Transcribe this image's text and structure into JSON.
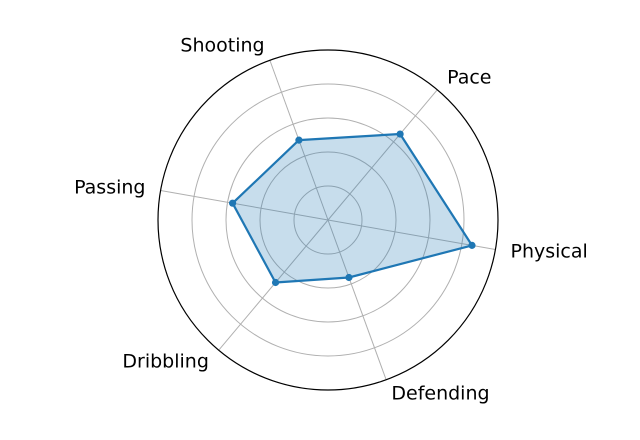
{
  "chart_data": {
    "type": "radar",
    "categories": [
      "Physical",
      "Pace",
      "Shooting",
      "Passing",
      "Dribbling",
      "Defending"
    ],
    "series": [
      {
        "values": [
          0.86,
          0.66,
          0.5,
          0.57,
          0.48,
          0.36
        ]
      }
    ],
    "rlim": [
      0,
      1
    ],
    "rgrid": [
      0.2,
      0.4,
      0.6,
      0.8
    ],
    "grid": true,
    "legend": "none",
    "colors": {
      "line": "#1f77b4",
      "fill": "#1f77b4",
      "grid": "#b0b0b0",
      "frame": "#000000"
    }
  }
}
